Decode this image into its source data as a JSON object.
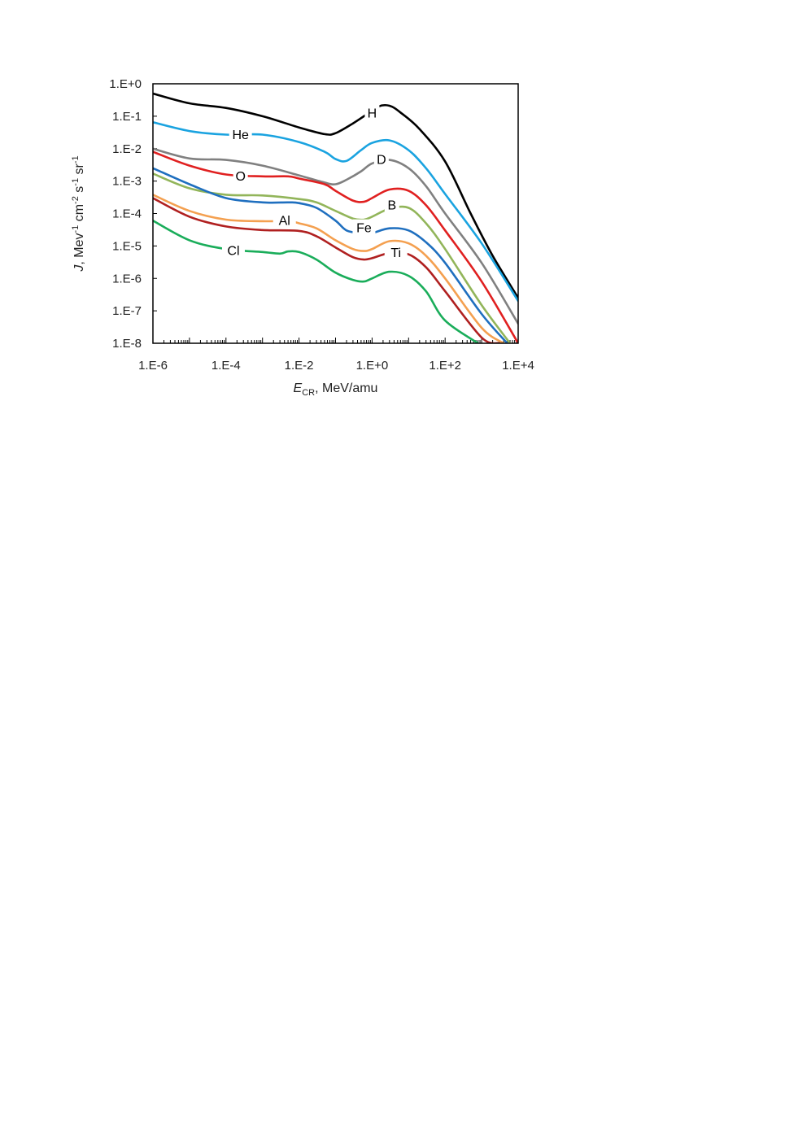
{
  "chart_data": {
    "type": "line",
    "xscale": "log",
    "yscale": "log",
    "xlim": [
      1e-06,
      10000.0
    ],
    "ylim": [
      1e-08,
      1
    ],
    "grid": false,
    "legend": "none (labels placed on curves)",
    "xlabel": {
      "italic": "E",
      "sub": "CR",
      "rest": ", MeV/amu"
    },
    "ylabel": {
      "italic": "J",
      "rest": ", Mev",
      "sup1": "-1",
      "mid1": " cm",
      "sup2": "-2",
      "mid2": " s",
      "sup3": "-1",
      "mid3": " sr",
      "sup4": "-1"
    },
    "xticks": [
      {
        "value": 1e-06,
        "label": "1.E-6"
      },
      {
        "value": 0.0001,
        "label": "1.E-4"
      },
      {
        "value": 0.01,
        "label": "1.E-2"
      },
      {
        "value": 1,
        "label": "1.E+0"
      },
      {
        "value": 100,
        "label": "1.E+2"
      },
      {
        "value": 10000,
        "label": "1.E+4"
      }
    ],
    "yticks": [
      {
        "value": 1,
        "label": "1.E+0"
      },
      {
        "value": 0.1,
        "label": "1.E-1"
      },
      {
        "value": 0.01,
        "label": "1.E-2"
      },
      {
        "value": 0.001,
        "label": "1.E-3"
      },
      {
        "value": 0.0001,
        "label": "1.E-4"
      },
      {
        "value": 1e-05,
        "label": "1.E-5"
      },
      {
        "value": 1e-06,
        "label": "1.E-6"
      },
      {
        "value": 1e-07,
        "label": "1.E-7"
      },
      {
        "value": 1e-08,
        "label": "1.E-8"
      }
    ],
    "series": [
      {
        "name": "H",
        "color": "#000000",
        "label_at": [
          1.0,
          0.12
        ],
        "x": [
          1e-06,
          1e-05,
          0.0001,
          0.001,
          0.01,
          0.05,
          0.1,
          0.3,
          0.6,
          1.5,
          3,
          6,
          20,
          100,
          500,
          2000,
          10000
        ],
        "y": [
          0.5,
          0.25,
          0.18,
          0.1,
          0.045,
          0.028,
          0.03,
          0.06,
          0.1,
          0.2,
          0.21,
          0.13,
          0.04,
          0.004,
          0.0001,
          5e-06,
          2.5e-07
        ]
      },
      {
        "name": "He",
        "color": "#1aa3e0",
        "label_at": [
          0.00025,
          0.026
        ],
        "x": [
          1e-06,
          1e-05,
          0.0001,
          0.001,
          0.01,
          0.05,
          0.1,
          0.2,
          0.5,
          1,
          3,
          10,
          30,
          100,
          1000,
          10000
        ],
        "y": [
          0.065,
          0.035,
          0.027,
          0.027,
          0.016,
          0.008,
          0.0048,
          0.0042,
          0.009,
          0.015,
          0.018,
          0.009,
          0.0025,
          0.0004,
          1.2e-05,
          2e-07
        ]
      },
      {
        "name": "D",
        "color": "#808080",
        "label_at": [
          1.8,
          0.0045
        ],
        "x": [
          1e-06,
          1e-05,
          0.0001,
          0.001,
          0.01,
          0.05,
          0.1,
          0.2,
          0.5,
          1,
          3,
          10,
          30,
          100,
          1000,
          10000
        ],
        "y": [
          0.01,
          0.005,
          0.0045,
          0.003,
          0.0015,
          0.0009,
          0.0008,
          0.0011,
          0.002,
          0.0035,
          0.0045,
          0.0025,
          0.0007,
          0.0001,
          3e-06,
          4e-08
        ]
      },
      {
        "name": "O",
        "color": "#e02020",
        "label_at": [
          0.00025,
          0.0014
        ],
        "x": [
          1e-06,
          1e-05,
          0.0001,
          0.001,
          0.005,
          0.01,
          0.05,
          0.1,
          0.3,
          0.6,
          1,
          3,
          10,
          30,
          100,
          1000,
          10000
        ],
        "y": [
          0.008,
          0.003,
          0.0016,
          0.0014,
          0.0014,
          0.0012,
          0.0008,
          0.0005,
          0.00025,
          0.00023,
          0.0003,
          0.00055,
          0.0005,
          0.00018,
          3e-05,
          8e-07,
          1e-08
        ]
      },
      {
        "name": "B",
        "color": "#92b55a",
        "label_at": [
          3.5,
          0.00018
        ],
        "x": [
          1e-06,
          1e-05,
          0.0001,
          0.001,
          0.01,
          0.03,
          0.1,
          0.3,
          0.6,
          1,
          3,
          10,
          30,
          100,
          1000,
          6000
        ],
        "y": [
          0.0017,
          0.0006,
          0.00038,
          0.00036,
          0.00028,
          0.00022,
          0.00012,
          7e-05,
          6.5e-05,
          8e-05,
          0.00014,
          0.00015,
          5e-05,
          8e-06,
          1.5e-07,
          1e-08
        ]
      },
      {
        "name": "Fe",
        "color": "#1f6fbf",
        "label_at": [
          0.6,
          3.5e-05
        ],
        "x": [
          1e-06,
          1e-05,
          0.0001,
          0.001,
          0.005,
          0.01,
          0.03,
          0.1,
          0.2,
          0.5,
          1,
          3,
          10,
          30,
          100,
          1000,
          5000
        ],
        "y": [
          0.0025,
          0.0008,
          0.0003,
          0.00022,
          0.00022,
          0.00021,
          0.00015,
          6e-05,
          3e-05,
          2.5e-05,
          2.5e-05,
          3.5e-05,
          3e-05,
          1.3e-05,
          3e-06,
          8e-08,
          1e-08
        ]
      },
      {
        "name": "Al",
        "color": "#f4a050",
        "label_at": [
          0.004,
          6e-05
        ],
        "x": [
          1e-06,
          1e-05,
          0.0001,
          0.001,
          0.005,
          0.01,
          0.03,
          0.1,
          0.3,
          0.6,
          1,
          3,
          10,
          30,
          100,
          1000,
          4000
        ],
        "y": [
          0.00038,
          0.00012,
          6.5e-05,
          5.8e-05,
          5.8e-05,
          5e-05,
          3.5e-05,
          1.5e-05,
          8e-06,
          7e-06,
          8e-06,
          1.4e-05,
          1.2e-05,
          5e-06,
          1e-06,
          3e-08,
          1e-08
        ]
      },
      {
        "name": "Ti",
        "color": "#b02020",
        "label_at": [
          4.5,
          6e-06
        ],
        "x": [
          1e-06,
          1e-05,
          0.0001,
          0.001,
          0.01,
          0.03,
          0.1,
          0.3,
          0.6,
          1,
          3,
          10,
          30,
          100,
          1000,
          3000
        ],
        "y": [
          0.0003,
          8e-05,
          4e-05,
          3.1e-05,
          2.9e-05,
          2e-05,
          9e-06,
          4.5e-06,
          3.8e-06,
          4.2e-06,
          6e-06,
          5.5e-06,
          2.2e-06,
          4e-07,
          1.5e-08,
          1e-08
        ]
      },
      {
        "name": "Cl",
        "color": "#1aad5a",
        "label_at": [
          0.00016,
          7e-06
        ],
        "x": [
          1e-06,
          1e-05,
          0.0001,
          0.001,
          0.003,
          0.005,
          0.01,
          0.03,
          0.1,
          0.3,
          0.6,
          1,
          3,
          10,
          30,
          100,
          800
        ],
        "y": [
          6e-05,
          1.5e-05,
          8e-06,
          6.5e-06,
          5.8e-06,
          6.8e-06,
          6.5e-06,
          3.8e-06,
          1.5e-06,
          9e-07,
          8e-07,
          1e-06,
          1.6e-06,
          1.2e-06,
          4e-07,
          5e-08,
          1e-08
        ]
      }
    ]
  }
}
